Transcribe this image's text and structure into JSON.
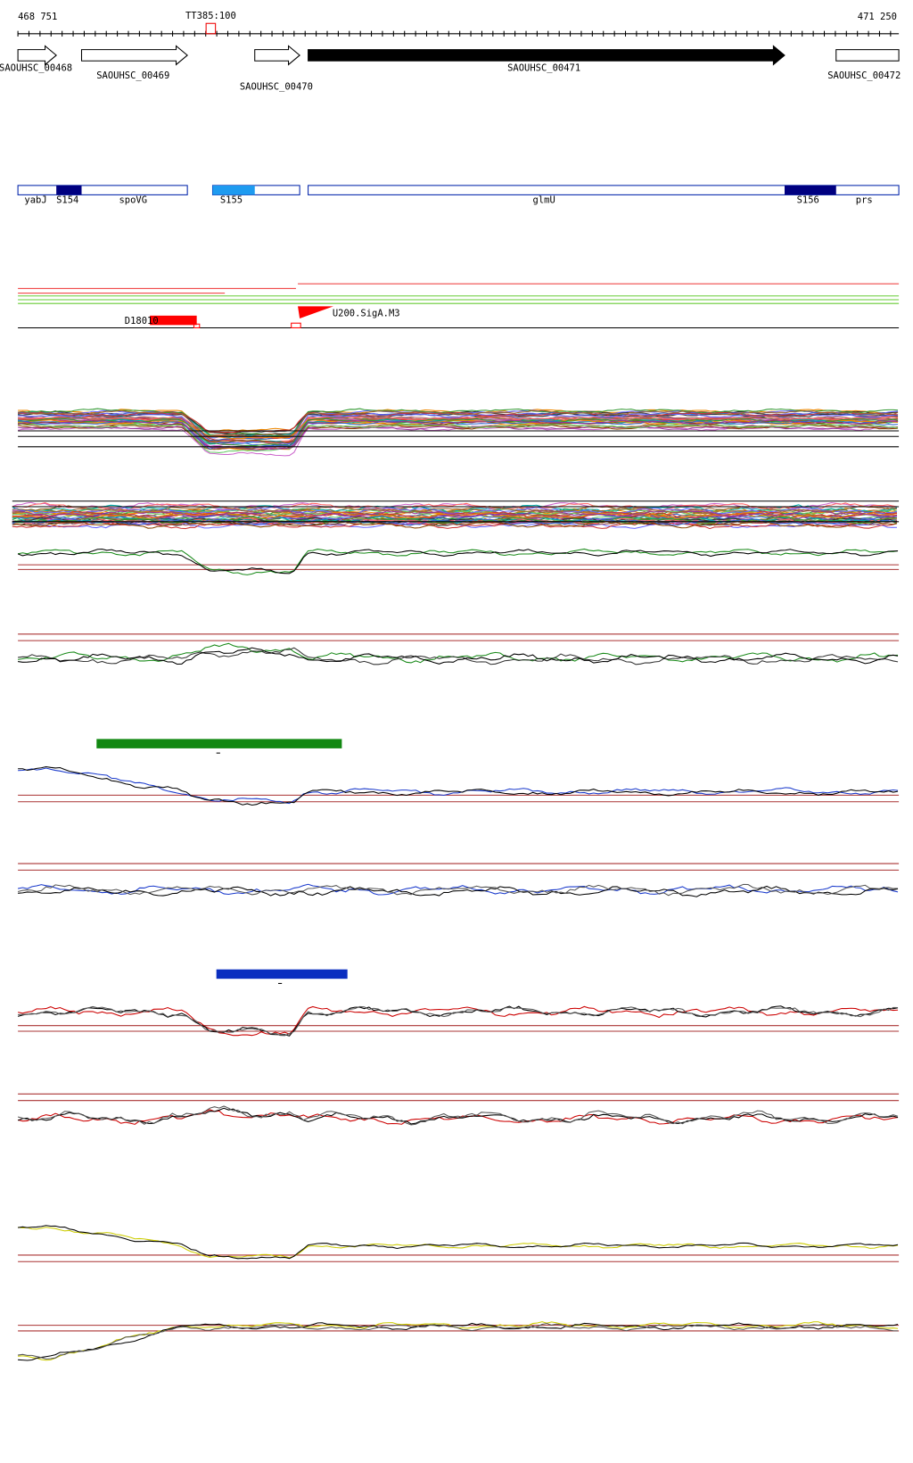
{
  "header": {
    "start": "468 751",
    "end": "471 250",
    "marker": "TT385:100"
  },
  "genes": [
    {
      "label": "SAOUHSC_00468"
    },
    {
      "label": "SAOUHSC_00469"
    },
    {
      "label": "SAOUHSC_00470"
    },
    {
      "label": "SAOUHSC_00471"
    },
    {
      "label": "SAOUHSC_00472"
    }
  ],
  "features": [
    {
      "label": "yabJ"
    },
    {
      "label": "S154"
    },
    {
      "label": "spoVG"
    },
    {
      "label": "S155"
    },
    {
      "label": "glmU"
    },
    {
      "label": "S156"
    },
    {
      "label": "prs"
    }
  ],
  "sites": [
    {
      "label": "D18010"
    },
    {
      "label": "U200.SigA.M3"
    }
  ]
}
